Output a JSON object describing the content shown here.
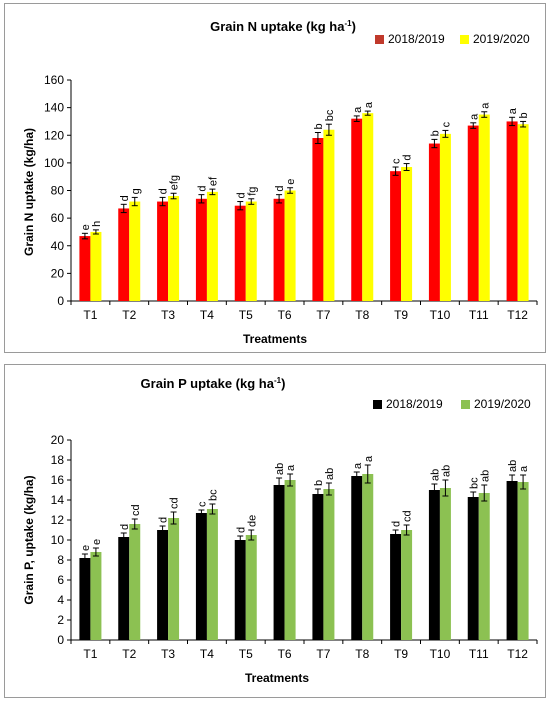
{
  "chart_data": [
    {
      "type": "bar",
      "title": "Grain N uptake (kg ha",
      "title_sup": "-1",
      "title_end": ")",
      "xlabel": "Treatments",
      "ylabel": "Grain N uptake (kg/ha)",
      "ylim": [
        0,
        160
      ],
      "yticks": [
        "0",
        "20",
        "40",
        "60",
        "80",
        "100",
        "120",
        "140",
        "160"
      ],
      "ytick_values": [
        0,
        20,
        40,
        60,
        80,
        100,
        120,
        140,
        160
      ],
      "grid": false,
      "legend_position": "top-right",
      "categories": [
        "T1",
        "T2",
        "T3",
        "T4",
        "T5",
        "T6",
        "T7",
        "T8",
        "T9",
        "T10",
        "T11",
        "T12"
      ],
      "series": [
        {
          "name": "2018/2019",
          "color": "#ff0000",
          "legend_color": "#c0392b",
          "values": [
            47,
            67,
            72,
            74,
            69,
            74,
            118,
            132,
            94,
            114,
            127,
            130
          ],
          "errors": [
            2,
            3,
            3,
            3,
            3,
            3,
            4,
            2,
            3,
            3,
            2,
            3
          ],
          "letters": [
            "e",
            "d",
            "d",
            "d",
            "d",
            "d",
            "b",
            "a",
            "c",
            "b",
            "a",
            "a"
          ]
        },
        {
          "name": "2019/2020",
          "color": "#ffff00",
          "legend_color": "#ffff00",
          "values": [
            50,
            72,
            76,
            79,
            72,
            80,
            124,
            136,
            97,
            121,
            135,
            128
          ],
          "errors": [
            1.5,
            3,
            2,
            2,
            2,
            2,
            4,
            1.5,
            2.5,
            2.5,
            2,
            2
          ],
          "letters": [
            "h",
            "g",
            "efg",
            "ef",
            "fg",
            "e",
            "bc",
            "a",
            "d",
            "c",
            "a",
            "b"
          ]
        }
      ]
    },
    {
      "type": "bar",
      "title": "Grain P uptake (kg ha",
      "title_sup": "-1",
      "title_end": ")",
      "xlabel": "Treatments",
      "ylabel": "Grain P, uptake (kg/ha)",
      "ylim": [
        0,
        20
      ],
      "yticks": [
        "0",
        "2",
        "4",
        "6",
        "8",
        "10",
        "12",
        "14",
        "16",
        "18",
        "20"
      ],
      "ytick_values": [
        0,
        2,
        4,
        6,
        8,
        10,
        12,
        14,
        16,
        18,
        20
      ],
      "grid": false,
      "legend_position": "top-right",
      "categories": [
        "T1",
        "T2",
        "T3",
        "T4",
        "T5",
        "T6",
        "T7",
        "T8",
        "T9",
        "T10",
        "T11",
        "T12"
      ],
      "series": [
        {
          "name": "2018/2019",
          "color": "#000000",
          "legend_color": "#000000",
          "values": [
            8.2,
            10.3,
            11.0,
            12.7,
            10.0,
            15.5,
            14.6,
            16.4,
            10.6,
            15.0,
            14.3,
            15.9
          ],
          "errors": [
            0.4,
            0.4,
            0.4,
            0.3,
            0.4,
            0.7,
            0.5,
            0.4,
            0.4,
            0.6,
            0.5,
            0.6
          ],
          "letters": [
            "e",
            "d",
            "d",
            "c",
            "d",
            "ab",
            "b",
            "a",
            "d",
            "ab",
            "bc",
            "ab"
          ]
        },
        {
          "name": "2019/2020",
          "color": "#8cc152",
          "legend_color": "#8cc152",
          "values": [
            8.8,
            11.6,
            12.2,
            13.1,
            10.5,
            16.0,
            15.1,
            16.6,
            11.0,
            15.2,
            14.7,
            15.8
          ],
          "errors": [
            0.4,
            0.5,
            0.6,
            0.5,
            0.5,
            0.6,
            0.6,
            0.9,
            0.5,
            0.8,
            0.8,
            0.7
          ],
          "letters": [
            "e",
            "cd",
            "cd",
            "bc",
            "de",
            "a",
            "ab",
            "a",
            "cd",
            "ab",
            "ab",
            "a"
          ]
        }
      ]
    }
  ]
}
